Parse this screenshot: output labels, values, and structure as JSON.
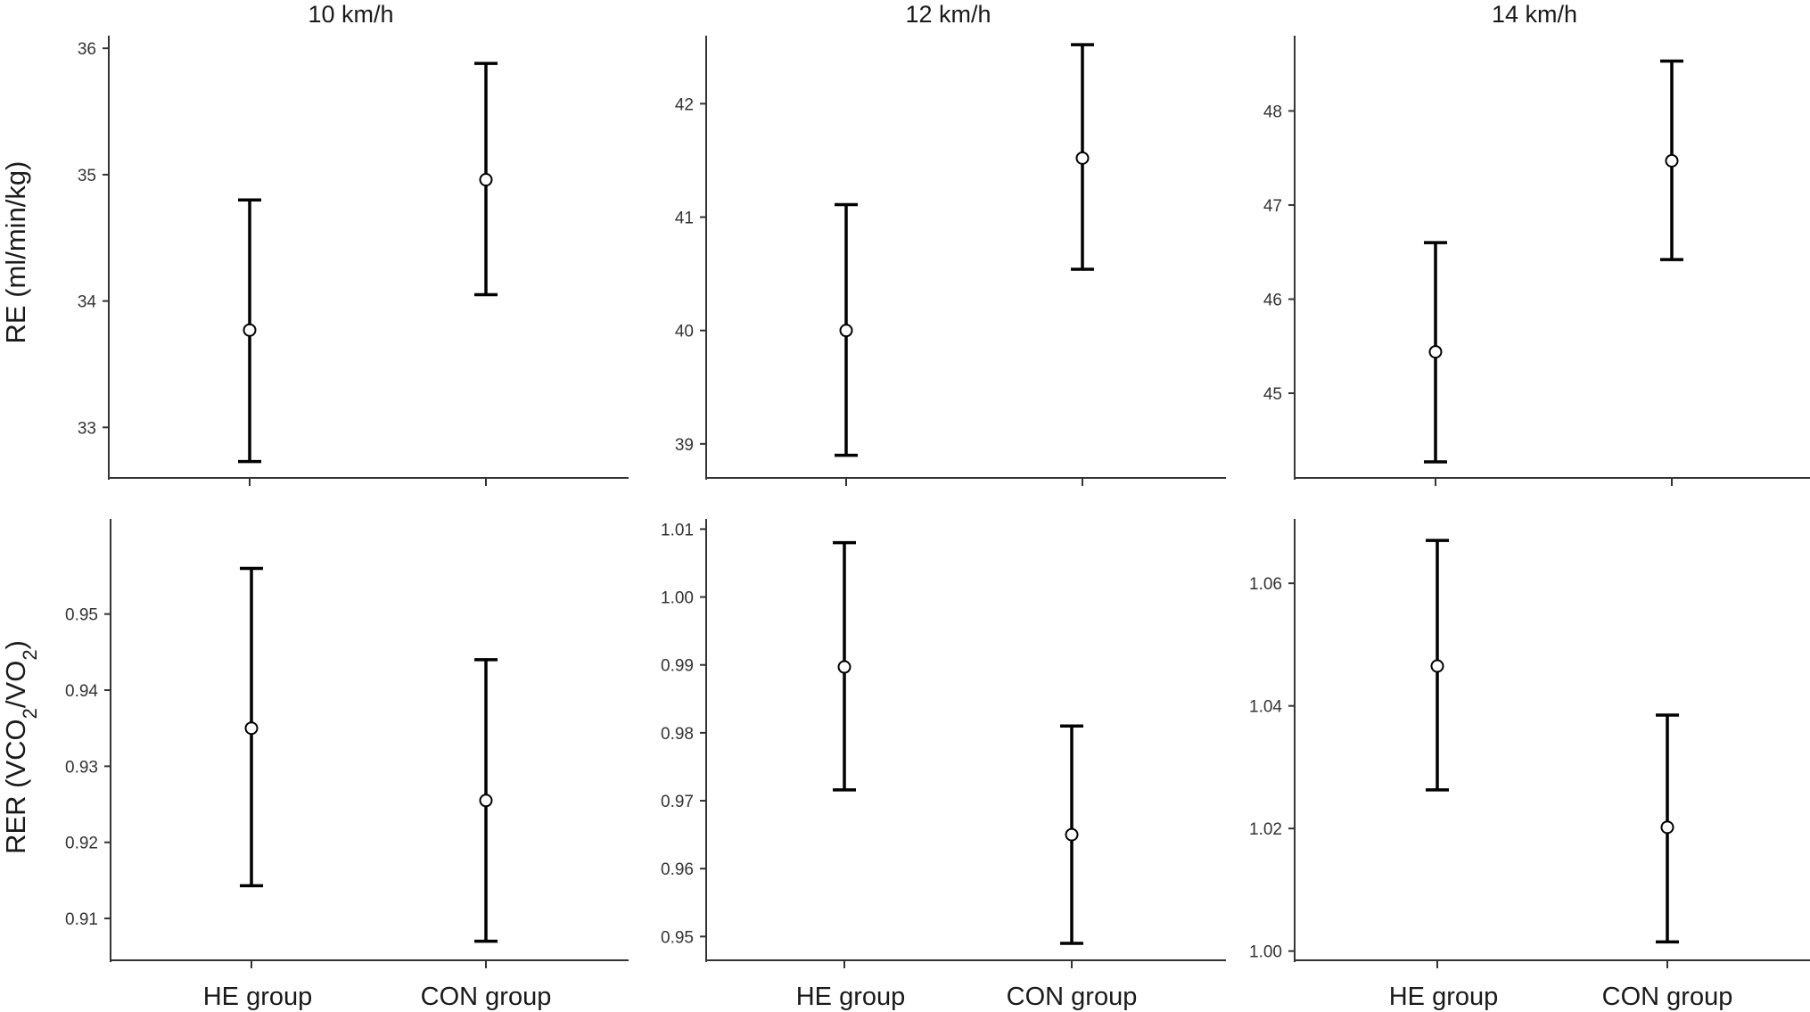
{
  "chart_data": [
    {
      "type": "errorbar",
      "title": "10 km/h",
      "ylabel": "RE (ml/min/kg)",
      "categories": [
        "HE group",
        "CON group"
      ],
      "ylim": [
        32.6,
        36.1
      ],
      "yticks": [
        "33",
        "34",
        "35",
        "36"
      ],
      "points": [
        {
          "category": "HE group",
          "mean": 33.77,
          "lower": 32.73,
          "upper": 34.8
        },
        {
          "category": "CON group",
          "mean": 34.96,
          "lower": 34.05,
          "upper": 35.88
        }
      ]
    },
    {
      "type": "errorbar",
      "title": "12 km/h",
      "categories": [
        "HE group",
        "CON group"
      ],
      "ylim": [
        38.7,
        42.6
      ],
      "yticks": [
        "39",
        "40",
        "41",
        "42"
      ],
      "points": [
        {
          "category": "HE group",
          "mean": 40.0,
          "lower": 38.9,
          "upper": 41.11
        },
        {
          "category": "CON group",
          "mean": 41.52,
          "lower": 40.54,
          "upper": 42.52
        }
      ]
    },
    {
      "type": "errorbar",
      "title": "14 km/h",
      "categories": [
        "HE group",
        "CON group"
      ],
      "ylim": [
        44.1,
        48.8
      ],
      "yticks": [
        "45",
        "46",
        "47",
        "48"
      ],
      "points": [
        {
          "category": "HE group",
          "mean": 45.44,
          "lower": 44.27,
          "upper": 46.6
        },
        {
          "category": "CON group",
          "mean": 47.47,
          "lower": 46.42,
          "upper": 48.53
        }
      ]
    },
    {
      "type": "errorbar",
      "ylabel": "RER (VCO2/VO2)",
      "categories": [
        "HE group",
        "CON group"
      ],
      "xticklabels": [
        "HE group",
        "CON group"
      ],
      "ylim": [
        0.9045,
        0.9625
      ],
      "yticks": [
        "0.91",
        "0.92",
        "0.93",
        "0.94",
        "0.95"
      ],
      "points": [
        {
          "category": "HE group",
          "mean": 0.935,
          "lower": 0.9143,
          "upper": 0.956
        },
        {
          "category": "CON group",
          "mean": 0.9255,
          "lower": 0.907,
          "upper": 0.944
        }
      ]
    },
    {
      "type": "errorbar",
      "categories": [
        "HE group",
        "CON group"
      ],
      "xticklabels": [
        "HE group",
        "CON group"
      ],
      "ylim": [
        0.9465,
        1.0115
      ],
      "yticks": [
        "0.95",
        "0.96",
        "0.97",
        "0.98",
        "0.99",
        "1.00",
        "1.01"
      ],
      "points": [
        {
          "category": "HE group",
          "mean": 0.9897,
          "lower": 0.9716,
          "upper": 1.008
        },
        {
          "category": "CON group",
          "mean": 0.965,
          "lower": 0.949,
          "upper": 0.981
        }
      ]
    },
    {
      "type": "errorbar",
      "categories": [
        "HE group",
        "CON group"
      ],
      "xticklabels": [
        "HE group",
        "CON group"
      ],
      "ylim": [
        0.9985,
        1.0705
      ],
      "yticks": [
        "1.00",
        "1.02",
        "1.04",
        "1.06"
      ],
      "points": [
        {
          "category": "HE group",
          "mean": 1.0465,
          "lower": 1.0263,
          "upper": 1.067
        },
        {
          "category": "CON group",
          "mean": 1.0202,
          "lower": 1.0015,
          "upper": 1.0385
        }
      ]
    }
  ]
}
